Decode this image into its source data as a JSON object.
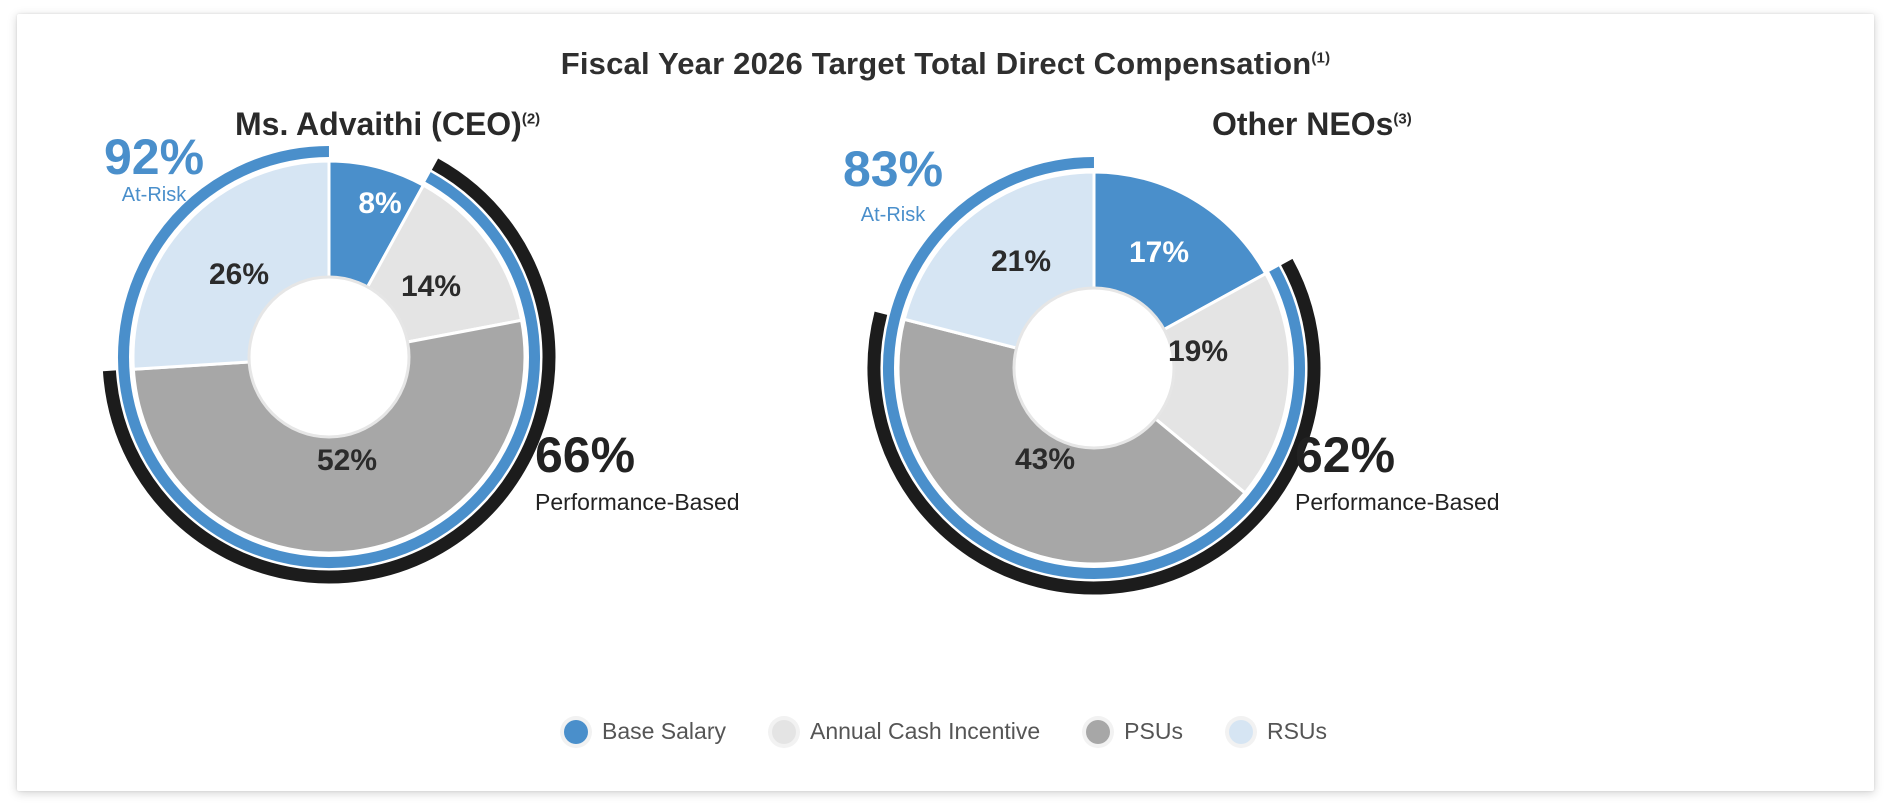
{
  "title": "Fiscal Year 2026 Target Total Direct Compensation",
  "title_sup": "(1)",
  "colors": {
    "base_salary": "#4a8fcb",
    "annual_cash_incentive": "#e4e4e4",
    "psus": "#a7a7a7",
    "rsus": "#d6e5f3",
    "at_risk_ring": "#4a8fcb",
    "performance_ring": "#1c1c1c",
    "at_risk_text": "#4a8fcb",
    "performance_text": "#222222"
  },
  "legend": [
    {
      "label": "Base Salary",
      "color": "#4a8fcb"
    },
    {
      "label": "Annual Cash Incentive",
      "color": "#e4e4e4"
    },
    {
      "label": "PSUs",
      "color": "#a7a7a7"
    },
    {
      "label": "RSUs",
      "color": "#d6e5f3"
    }
  ],
  "chart_data": [
    {
      "type": "pie",
      "title": "Ms. Advaithi (CEO)",
      "title_sup": "(2)",
      "categories": [
        "Base Salary",
        "Annual Cash Incentive",
        "PSUs",
        "RSUs"
      ],
      "values": [
        8,
        14,
        52,
        26
      ],
      "labels": [
        "8%",
        "14%",
        "52%",
        "26%"
      ],
      "at_risk": {
        "value": "92%",
        "label": "At-Risk"
      },
      "performance_based": {
        "value": "66%",
        "label": "Performance-Based"
      }
    },
    {
      "type": "pie",
      "title": "Other NEOs",
      "title_sup": "(3)",
      "categories": [
        "Base Salary",
        "Annual Cash Incentive",
        "PSUs",
        "RSUs"
      ],
      "values": [
        17,
        19,
        43,
        21
      ],
      "labels": [
        "17%",
        "19%",
        "43%",
        "21%"
      ],
      "at_risk": {
        "value": "83%",
        "label": "At-Risk"
      },
      "performance_based": {
        "value": "62%",
        "label": "Performance-Based"
      }
    }
  ]
}
